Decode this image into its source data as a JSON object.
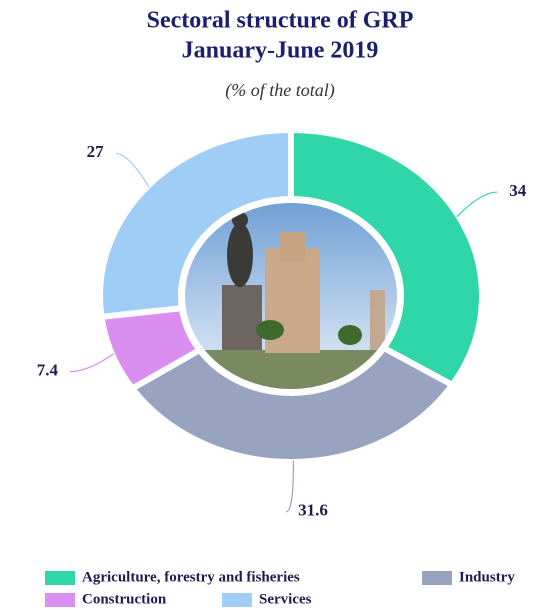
{
  "chart_data": {
    "type": "pie",
    "title": "Sectoral structure of GRP",
    "subtitle": "January-June 2019",
    "unit_note": "(% of the total)",
    "categories": [
      "Agriculture, forestry and fisheries",
      "Industry",
      "Construction",
      "Services"
    ],
    "values": [
      34,
      31.6,
      7.4,
      27
    ],
    "colors": [
      "#2fd6a8",
      "#98a4bf",
      "#d98ef0",
      "#9fcdf5"
    ],
    "donut": true
  }
}
